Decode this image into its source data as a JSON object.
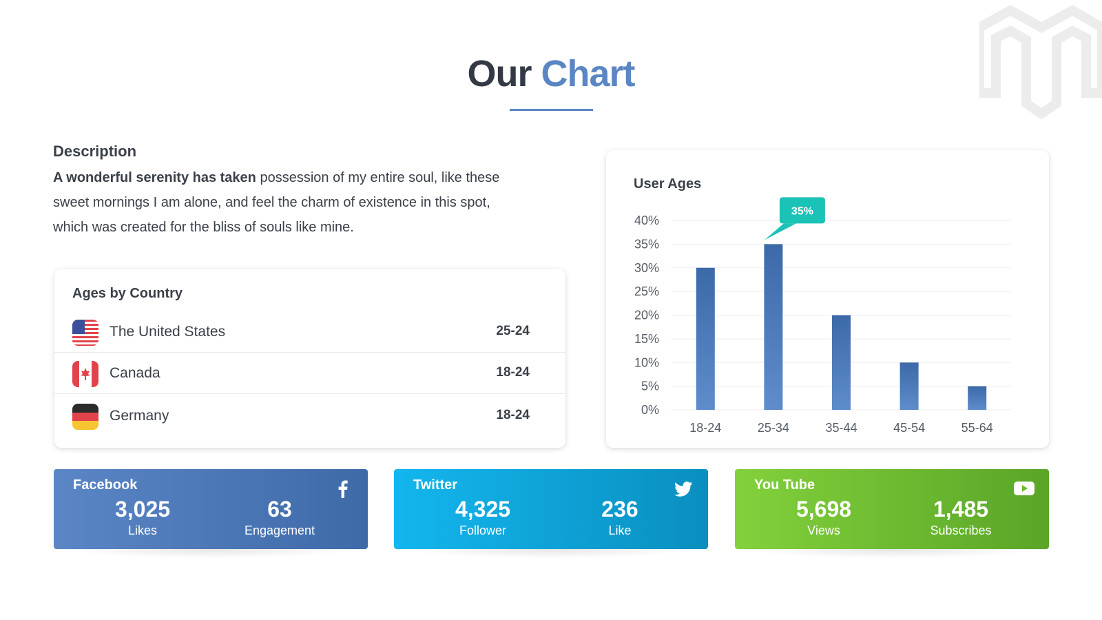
{
  "header": {
    "title_part1": "Our",
    "title_part2": "Chart"
  },
  "description": {
    "heading": "Description",
    "text_bold": "A wonderful serenity has taken",
    "text_rest": " possession of my entire soul, like these sweet mornings I am alone, and feel the charm of existence in this spot, which was created for the bliss of souls like mine."
  },
  "ages_by_country": {
    "title": "Ages by Country",
    "rows": [
      {
        "country": "The United States",
        "age": "25-24",
        "flag": "us-flag-icon"
      },
      {
        "country": "Canada",
        "age": "18-24",
        "flag": "canada-flag-icon"
      },
      {
        "country": "Germany",
        "age": "18-24",
        "flag": "germany-flag-icon"
      }
    ]
  },
  "chart_data": {
    "type": "bar",
    "title": "User Ages",
    "categories": [
      "18-24",
      "25-34",
      "35-44",
      "45-54",
      "55-64"
    ],
    "values": [
      30,
      35,
      20,
      10,
      5
    ],
    "y_ticks": [
      "0%",
      "5%",
      "10%",
      "15%",
      "20%",
      "25%",
      "30%",
      "35%",
      "40%"
    ],
    "ylim": [
      0,
      40
    ],
    "grid": true,
    "callout": {
      "category": "25-34",
      "label": "35%"
    },
    "colors": {
      "bar_top": "#3c69a8",
      "bar_bottom": "#5f8ccb",
      "callout": "#1bc2b6",
      "grid": "#eceef1"
    }
  },
  "social": [
    {
      "name": "Facebook",
      "icon": "facebook-icon",
      "stat1_value": "3,025",
      "stat1_label": "Likes",
      "stat2_value": "63",
      "stat2_label": "Engagement"
    },
    {
      "name": "Twitter",
      "icon": "twitter-icon",
      "stat1_value": "4,325",
      "stat1_label": "Follower",
      "stat2_value": "236",
      "stat2_label": "Like"
    },
    {
      "name": "You Tube",
      "icon": "youtube-icon",
      "stat1_value": "5,698",
      "stat1_label": "Views",
      "stat2_value": "1,485",
      "stat2_label": "Subscribes"
    }
  ]
}
